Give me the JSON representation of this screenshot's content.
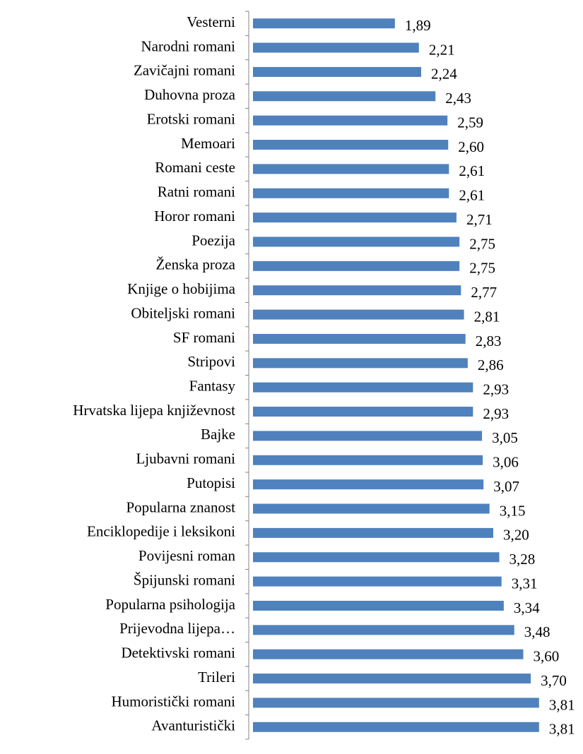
{
  "chart_data": {
    "type": "bar",
    "orientation": "horizontal",
    "categories": [
      "Vesterni",
      "Narodni romani",
      "Zavičajni romani",
      "Duhovna proza",
      "Erotski romani",
      "Memoari",
      "Romani ceste",
      "Ratni romani",
      "Horor romani",
      "Poezija",
      "Ženska proza",
      "Knjige o hobijima",
      "Obiteljski romani",
      "SF romani",
      "Stripovi",
      "Fantasy",
      "Hrvatska lijepa književnost",
      "Bajke",
      "Ljubavni romani",
      "Putopisi",
      "Popularna znanost",
      "Enciklopedije i leksikoni",
      "Povijesni roman",
      "Špijunski romani",
      "Popularna psihologija",
      "Prijevodna lijepa…",
      "Detektivski romani",
      "Trileri",
      "Humoristički romani",
      "Avanturistički"
    ],
    "values": [
      1.89,
      2.21,
      2.24,
      2.43,
      2.59,
      2.6,
      2.61,
      2.61,
      2.71,
      2.75,
      2.75,
      2.77,
      2.81,
      2.83,
      2.86,
      2.93,
      2.93,
      3.05,
      3.06,
      3.07,
      3.15,
      3.2,
      3.28,
      3.31,
      3.34,
      3.48,
      3.6,
      3.7,
      3.81,
      3.81
    ],
    "value_labels": [
      "1,89",
      "2,21",
      "2,24",
      "2,43",
      "2,59",
      "2,60",
      "2,61",
      "2,61",
      "2,71",
      "2,75",
      "2,75",
      "2,77",
      "2,81",
      "2,83",
      "2,86",
      "2,93",
      "2,93",
      "3,05",
      "3,06",
      "3,07",
      "3,15",
      "3,20",
      "3,28",
      "3,31",
      "3,34",
      "3,48",
      "3,60",
      "3,70",
      "3,81",
      "3,81"
    ],
    "color": "#4f81bd",
    "xlim": [
      0,
      4
    ]
  }
}
